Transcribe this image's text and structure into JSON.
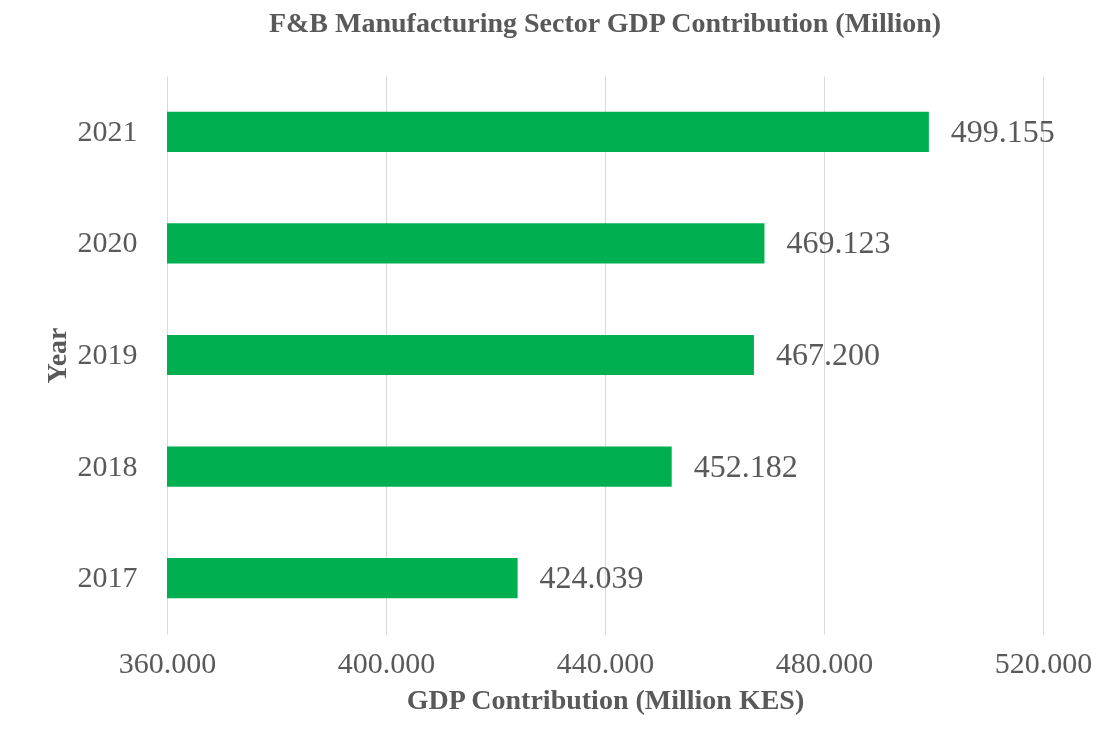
{
  "chart_data": {
    "type": "bar",
    "orientation": "horizontal",
    "title": "F&B Manufacturing Sector GDP Contribution (Million)",
    "xlabel": "GDP Contribution (Million KES)",
    "ylabel": "Year",
    "categories": [
      "2021",
      "2020",
      "2019",
      "2018",
      "2017"
    ],
    "values": [
      499.155,
      469.123,
      467.2,
      452.182,
      424.039
    ],
    "value_labels": [
      "499.155",
      "469.123",
      "467.200",
      "452.182",
      "424.039"
    ],
    "color": "#00b050",
    "xlim": [
      360,
      520
    ],
    "xticks": [
      {
        "value": 360,
        "label": "360.000"
      },
      {
        "value": 400,
        "label": "400.000"
      },
      {
        "value": 440,
        "label": "440.000"
      },
      {
        "value": 480,
        "label": "480.000"
      },
      {
        "value": 520,
        "label": "520.000"
      }
    ],
    "grid": "x"
  }
}
